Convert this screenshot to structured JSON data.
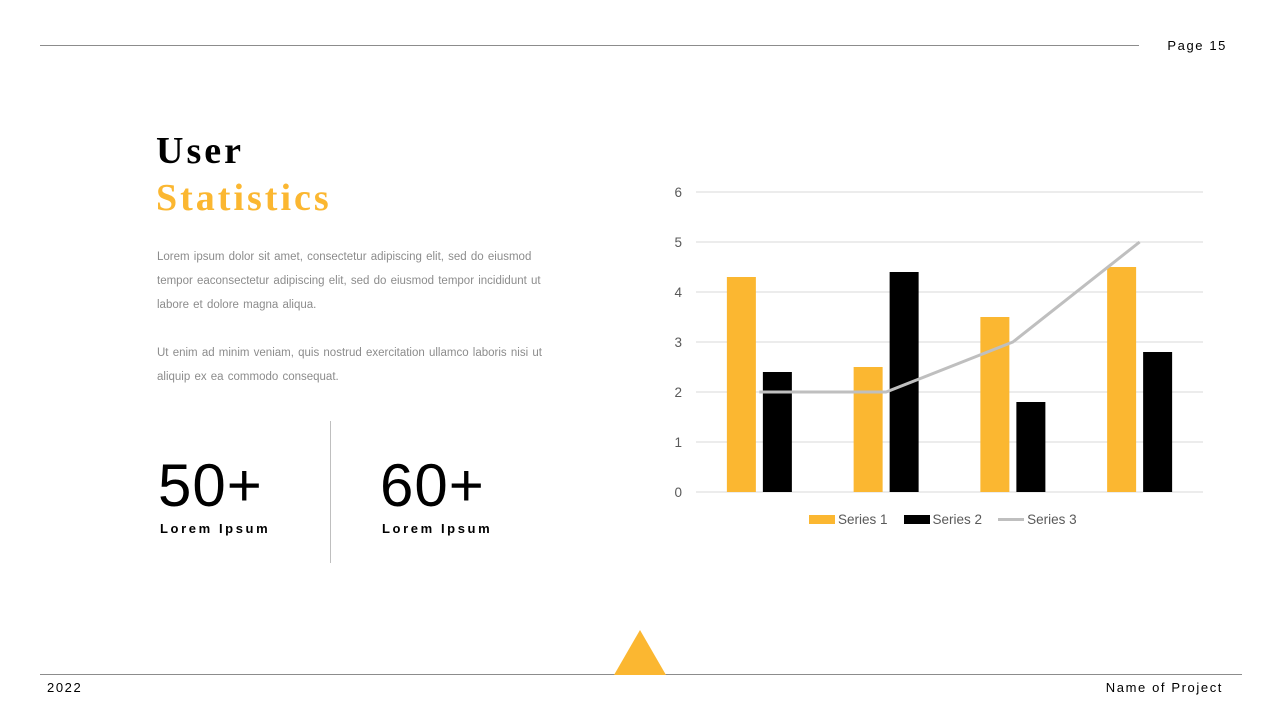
{
  "header": {
    "page_label": "Page 15"
  },
  "title": {
    "line1": "User",
    "line2": "Statistics"
  },
  "body": {
    "paragraph1": "Lorem  ipsum dolor sit amet, consectetur  adipiscing elit, sed do eiusmod tempor  eaconsectetur  adipiscing elit, sed do eiusmod tempor  incididunt ut labore et dolore magna aliqua.",
    "paragraph2": "Ut enim ad minim veniam, quis nostrud exercitation ullamco laboris nisi ut aliquip ex ea commodo  consequat."
  },
  "stats": [
    {
      "value": "50+",
      "label": "Lorem Ipsum"
    },
    {
      "value": "60+",
      "label": "Lorem Ipsum"
    }
  ],
  "footer": {
    "year": "2022",
    "project": "Name of Project"
  },
  "colors": {
    "accent": "#fbb731",
    "series2": "#000000",
    "series3": "#bfbfbf",
    "grid": "#d9d9d9"
  },
  "chart_data": {
    "type": "bar",
    "categories": [
      "",
      "",
      "",
      ""
    ],
    "series": [
      {
        "name": "Series 1",
        "type": "bar",
        "values": [
          4.3,
          2.5,
          3.5,
          4.5
        ],
        "color": "#fbb731"
      },
      {
        "name": "Series 2",
        "type": "bar",
        "values": [
          2.4,
          4.4,
          1.8,
          2.8
        ],
        "color": "#000000"
      },
      {
        "name": "Series 3",
        "type": "line",
        "values": [
          2,
          2,
          3,
          5
        ],
        "color": "#bfbfbf"
      }
    ],
    "ylim": [
      0,
      6
    ],
    "yticks": [
      "0",
      "1",
      "2",
      "3",
      "4",
      "5",
      "6"
    ],
    "grid": true,
    "legend": "bottom"
  }
}
